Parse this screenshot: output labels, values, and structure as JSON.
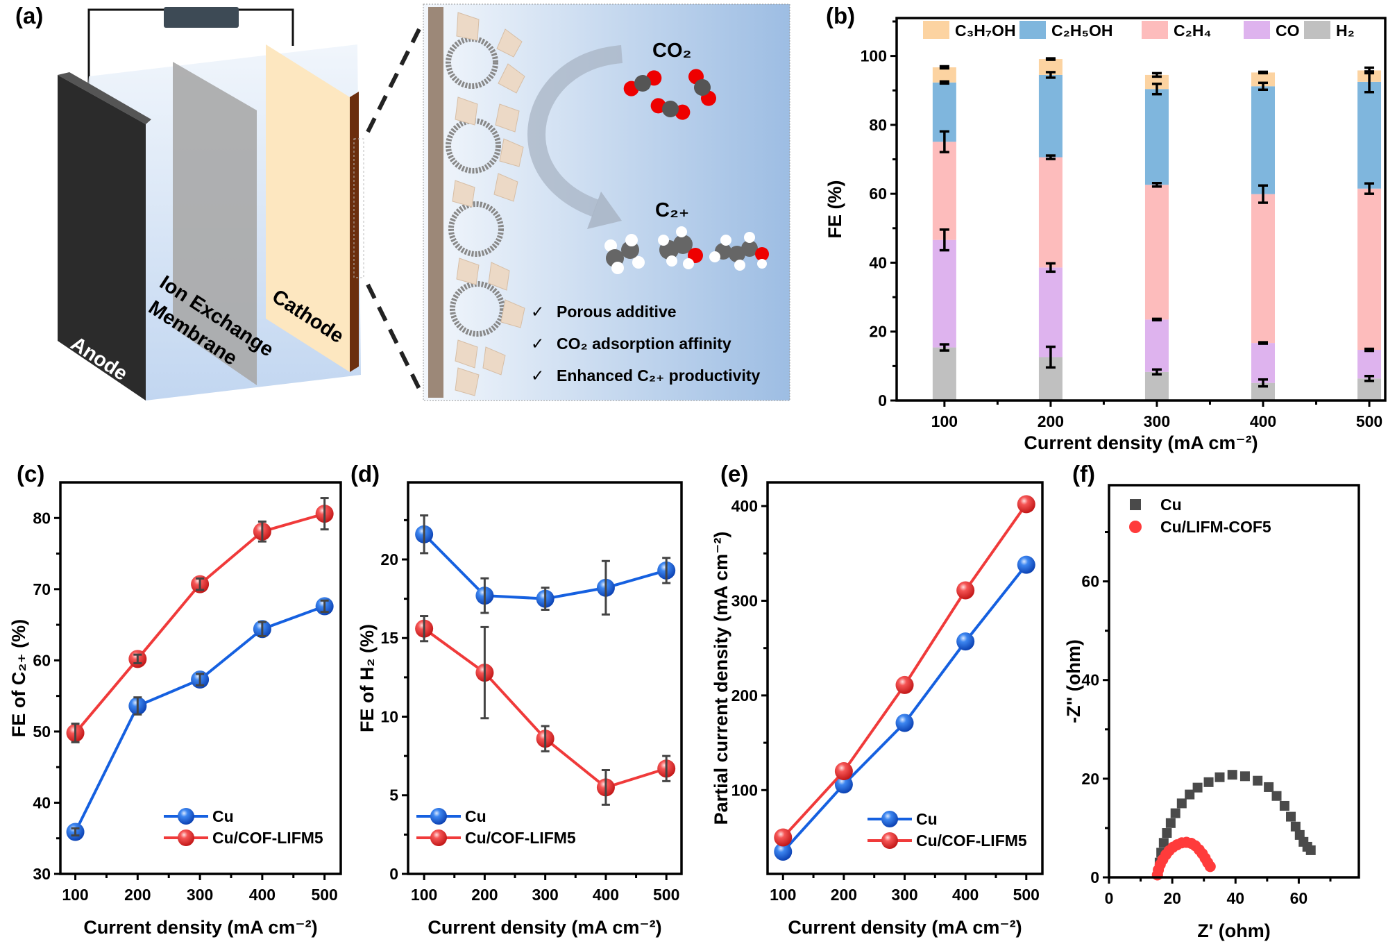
{
  "panel_labels": {
    "a": "(a)"
  },
  "panel_a": {
    "anode": "Anode",
    "membrane_line1": "Ion Exchange",
    "membrane_line2": "Membrane",
    "cathode": "Cathode",
    "co2_label": "CO₂",
    "c2plus_label": "C₂₊",
    "checklist": [
      {
        "check": "✓",
        "text": "Porous additive"
      },
      {
        "check": "✓",
        "text": "CO₂ adsorption affinity"
      },
      {
        "check": "✓",
        "text": "Enhanced C₂₊ productivity"
      }
    ]
  },
  "chart_data": [
    {
      "panel": "b",
      "panel_label": "(b)",
      "type": "bar",
      "stacked": true,
      "x": [
        100,
        200,
        300,
        400,
        500
      ],
      "categories": [
        "100",
        "200",
        "300",
        "400",
        "500"
      ],
      "xlim": [
        55,
        515
      ],
      "ylim": [
        0,
        111
      ],
      "yticks": [
        0,
        20,
        40,
        60,
        80,
        100
      ],
      "xlabel": "Current density (mA cm⁻²)",
      "ylabel": "FE (%)",
      "legend_position": "top",
      "series": [
        {
          "name": "H₂",
          "color": "#c0c0c0",
          "values": [
            15.4,
            12.6,
            8.3,
            5.1,
            6.4
          ],
          "errors": [
            0.9,
            3.0,
            0.7,
            1.0,
            0.7
          ]
        },
        {
          "name": "CO",
          "color": "#deb3ee",
          "values": [
            31.2,
            26.0,
            15.2,
            11.6,
            8.3
          ],
          "errors": [
            3.0,
            1.2,
            0.2,
            0.2,
            0.3
          ]
        },
        {
          "name": "C₂H₄",
          "color": "#fdbcbc",
          "values": [
            28.5,
            32.0,
            39.1,
            43.2,
            46.8
          ],
          "errors": [
            3.0,
            0.5,
            0.5,
            2.5,
            1.5
          ]
        },
        {
          "name": "C₂H₅OH",
          "color": "#7fb6dd",
          "values": [
            17.2,
            23.9,
            27.8,
            31.3,
            31.0
          ],
          "errors": [
            0.3,
            0.8,
            1.5,
            1.0,
            3.0
          ]
        },
        {
          "name": "C₃H₇OH",
          "color": "#fcd3a1",
          "values": [
            4.4,
            4.6,
            4.1,
            4.0,
            3.3
          ],
          "errors": [
            0.3,
            0.2,
            0.5,
            0.2,
            0.8
          ]
        }
      ]
    },
    {
      "panel": "c",
      "panel_label": "(c)",
      "type": "line",
      "x": [
        100,
        200,
        300,
        400,
        500
      ],
      "xticks": [
        100,
        200,
        300,
        400,
        500
      ],
      "xlim": [
        76,
        526
      ],
      "ylim": [
        30,
        85
      ],
      "yticks": [
        30,
        40,
        50,
        60,
        70,
        80
      ],
      "xlabel": "Current density (mA cm⁻²)",
      "ylabel": "FE of C₂₊ (%)",
      "legend_position": "bottom-right",
      "series": [
        {
          "name": "Cu",
          "color": "#1560e0",
          "values": [
            35.9,
            53.6,
            57.3,
            64.4,
            67.6
          ],
          "errors": [
            0.5,
            1.2,
            0.8,
            1.0,
            0.8
          ]
        },
        {
          "name": "Cu/COF-LIFM5",
          "color": "#f03a3a",
          "values": [
            49.8,
            60.2,
            70.7,
            78.1,
            80.6
          ],
          "errors": [
            1.3,
            0.6,
            0.8,
            1.4,
            2.2
          ]
        }
      ]
    },
    {
      "panel": "d",
      "panel_label": "(d)",
      "type": "line",
      "x": [
        100,
        200,
        300,
        400,
        500
      ],
      "xticks": [
        100,
        200,
        300,
        400,
        500
      ],
      "xlim": [
        73.5,
        525
      ],
      "ylim": [
        0,
        24.9
      ],
      "yticks": [
        0,
        5,
        10,
        15,
        20
      ],
      "xlabel": "Current density (mA cm⁻²)",
      "ylabel": "FE of H₂ (%)",
      "legend_position": "bottom-left",
      "series": [
        {
          "name": "Cu",
          "color": "#1560e0",
          "values": [
            21.6,
            17.7,
            17.5,
            18.2,
            19.3
          ],
          "errors": [
            1.2,
            1.1,
            0.7,
            1.7,
            0.8
          ]
        },
        {
          "name": "Cu/COF-LIFM5",
          "color": "#f03a3a",
          "values": [
            15.6,
            12.8,
            8.6,
            5.5,
            6.7
          ],
          "errors": [
            0.8,
            2.9,
            0.8,
            1.1,
            0.8
          ]
        }
      ]
    },
    {
      "panel": "e",
      "panel_label": "(e)",
      "type": "line",
      "x": [
        100,
        200,
        300,
        400,
        500
      ],
      "xticks": [
        100,
        200,
        300,
        400,
        500
      ],
      "xlim": [
        74.6,
        526.5
      ],
      "ylim": [
        11.5,
        425
      ],
      "yticks": [
        100,
        200,
        300,
        400
      ],
      "xlabel": "Current density (mA cm⁻²)",
      "ylabel": "Partial current density (mA cm⁻²)",
      "legend_position": "bottom-right",
      "series": [
        {
          "name": "Cu",
          "color": "#1560e0",
          "values": [
            35,
            106,
            171,
            257,
            338
          ]
        },
        {
          "name": "Cu/COF-LIFM5",
          "color": "#f03a3a",
          "values": [
            50,
            120,
            211,
            311,
            402
          ]
        }
      ]
    },
    {
      "panel": "f",
      "panel_label": "(f)",
      "type": "scatter",
      "xlim": [
        0,
        79
      ],
      "ylim": [
        0,
        79.5
      ],
      "xticks": [
        0,
        20,
        40,
        60
      ],
      "yticks": [
        0,
        20,
        40,
        60
      ],
      "xlabel": "Z' (ohm)",
      "ylabel": "-Z\" (ohm)",
      "legend_position": "top-left",
      "series": [
        {
          "name": "Cu",
          "color": "#4a4a4a",
          "marker": "square",
          "points": [
            [
              15.5,
              1
            ],
            [
              16,
              3
            ],
            [
              16.5,
              5
            ],
            [
              17.3,
              7
            ],
            [
              18.3,
              9
            ],
            [
              19.5,
              11
            ],
            [
              21,
              13
            ],
            [
              23,
              15
            ],
            [
              25.5,
              16.8
            ],
            [
              28,
              18.2
            ],
            [
              31.5,
              19.3
            ],
            [
              35,
              20.3
            ],
            [
              39,
              20.8
            ],
            [
              43,
              20.5
            ],
            [
              47,
              19.6
            ],
            [
              50.5,
              18.3
            ],
            [
              53,
              16.5
            ],
            [
              55.5,
              14.5
            ],
            [
              57.5,
              12.3
            ],
            [
              59,
              10.3
            ],
            [
              60.3,
              8.6
            ],
            [
              61.5,
              7.2
            ],
            [
              62.7,
              6.2
            ],
            [
              63.8,
              5.5
            ]
          ]
        },
        {
          "name": "Cu/LIFM-COF5",
          "color": "#ff3b3b",
          "marker": "circle",
          "points": [
            [
              15.3,
              0.5
            ],
            [
              15.6,
              1.5
            ],
            [
              16.2,
              2.6
            ],
            [
              17,
              3.6
            ],
            [
              18,
              4.6
            ],
            [
              19,
              5.4
            ],
            [
              20.2,
              6.1
            ],
            [
              21.5,
              6.6
            ],
            [
              23,
              7
            ],
            [
              24.5,
              7.1
            ],
            [
              26,
              6.9
            ],
            [
              27.3,
              6.4
            ],
            [
              28.5,
              5.6
            ],
            [
              29.5,
              4.8
            ],
            [
              30.4,
              3.9
            ],
            [
              31.2,
              3
            ],
            [
              32,
              2.2
            ]
          ]
        }
      ]
    }
  ]
}
